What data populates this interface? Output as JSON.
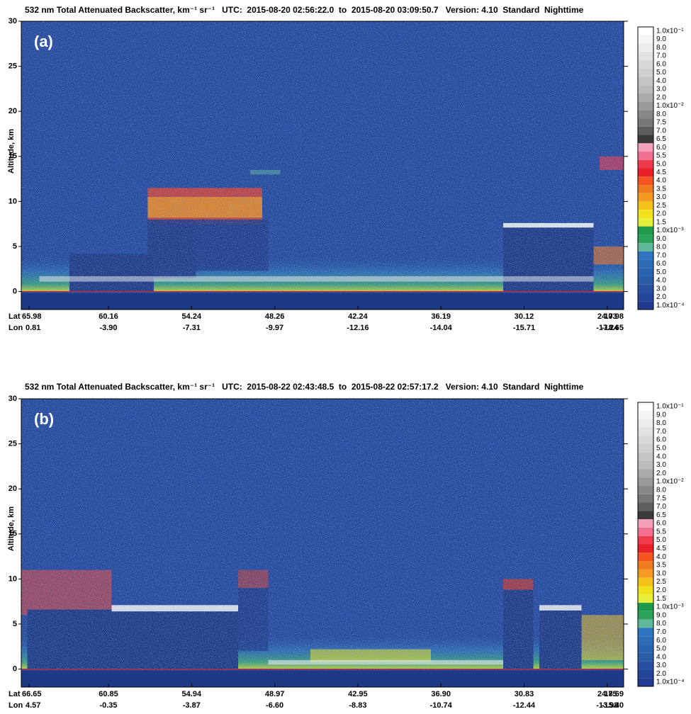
{
  "chart_data": [
    {
      "type": "curtain",
      "title": "532 nm Total Attenuated Backscatter, km⁻¹ sr⁻¹   UTC:  2015-08-20 02:56:22.0  to  2015-08-20 03:09:50.7   Version: 4.10  Standard  Nighttime",
      "panel_label": "(a)",
      "y_label": "Altitude, km",
      "ylim": [
        -2,
        30
      ],
      "yticks": [
        0,
        5,
        10,
        15,
        20,
        25,
        30
      ],
      "lat_title": "Lat",
      "lon_title": "Lon",
      "lat": [
        "65.98",
        "60.16",
        "54.24",
        "48.26",
        "42.24",
        "36.19",
        "30.12",
        "24.03",
        "17.98"
      ],
      "lon": [
        "0.81",
        "-3.90",
        "-7.31",
        "-9.97",
        "-12.16",
        "-14.04",
        "-15.71",
        "-17.24",
        "-18.65"
      ],
      "colorbar": {
        "labels": [
          "1.0x10⁻¹",
          "9.0",
          "8.0",
          "7.0",
          "6.0",
          "5.0",
          "4.0",
          "3.0",
          "2.0",
          "1.0x10⁻²",
          "8.0",
          "7.5",
          "7.0",
          "6.5",
          "6.0",
          "5.5",
          "5.0",
          "4.5",
          "4.0",
          "3.5",
          "3.0",
          "2.5",
          "2.0",
          "1.5",
          "1.0x10⁻³",
          "9.0",
          "8.0",
          "7.0",
          "6.0",
          "5.0",
          "4.0",
          "3.0",
          "2.0",
          "1.0x10⁻⁴"
        ],
        "colors": [
          "#ffffff",
          "#f5f5f5",
          "#ececec",
          "#e2e2e2",
          "#d8d8d8",
          "#cfcfcf",
          "#c5c5c5",
          "#bbbbbb",
          "#aaaaaa",
          "#999999",
          "#888888",
          "#777777",
          "#5e5e5e",
          "#3a3a3a",
          "#f4a0b8",
          "#f0708f",
          "#ee3a4a",
          "#e8202a",
          "#f2551f",
          "#f07a1e",
          "#f49a20",
          "#f5c21b",
          "#f2e21c",
          "#e6ee3a",
          "#1e9a4a",
          "#2aa25a",
          "#60b89a",
          "#2f74c0",
          "#2e6cb8",
          "#2a64b0",
          "#2a5ca8",
          "#284fa0",
          "#24449a",
          "#1f3a8f"
        ]
      }
    },
    {
      "type": "curtain",
      "title": "532 nm Total Attenuated Backscatter, km⁻¹ sr⁻¹   UTC:  2015-08-22 02:43:48.5  to  2015-08-22 02:57:17.2   Version: 4.10  Standard  Nighttime",
      "panel_label": "(b)",
      "y_label": "Altitude, km",
      "ylim": [
        -2,
        30
      ],
      "yticks": [
        0,
        5,
        10,
        15,
        20,
        25,
        30
      ],
      "lat_title": "Lat",
      "lon_title": "Lon",
      "lat": [
        "66.65",
        "60.85",
        "54.94",
        "48.97",
        "42.95",
        "36.90",
        "30.83",
        "24.75",
        "18.69"
      ],
      "lon": [
        "4.57",
        "-0.35",
        "-3.87",
        "-6.60",
        "-8.83",
        "-10.74",
        "-12.44",
        "-13.98",
        "-15.40"
      ],
      "colorbar": {
        "labels": [
          "1.0x10⁻¹",
          "9.0",
          "8.0",
          "7.0",
          "6.0",
          "5.0",
          "4.0",
          "3.0",
          "2.0",
          "1.0x10⁻²",
          "8.0",
          "7.5",
          "7.0",
          "6.5",
          "6.0",
          "5.5",
          "5.0",
          "4.5",
          "4.0",
          "3.5",
          "3.0",
          "2.5",
          "2.0",
          "1.5",
          "1.0x10⁻³",
          "9.0",
          "8.0",
          "7.0",
          "6.0",
          "5.0",
          "4.0",
          "3.0",
          "2.0",
          "1.0x10⁻⁴"
        ],
        "colors": [
          "#ffffff",
          "#f5f5f5",
          "#ececec",
          "#e2e2e2",
          "#d8d8d8",
          "#cfcfcf",
          "#c5c5c5",
          "#bbbbbb",
          "#aaaaaa",
          "#999999",
          "#888888",
          "#777777",
          "#5e5e5e",
          "#3a3a3a",
          "#f4a0b8",
          "#f0708f",
          "#ee3a4a",
          "#e8202a",
          "#f2551f",
          "#f07a1e",
          "#f49a20",
          "#f5c21b",
          "#f2e21c",
          "#e6ee3a",
          "#1e9a4a",
          "#2aa25a",
          "#60b89a",
          "#2f74c0",
          "#2e6cb8",
          "#2a64b0",
          "#2a5ca8",
          "#284fa0",
          "#24449a",
          "#1f3a8f"
        ]
      }
    }
  ]
}
